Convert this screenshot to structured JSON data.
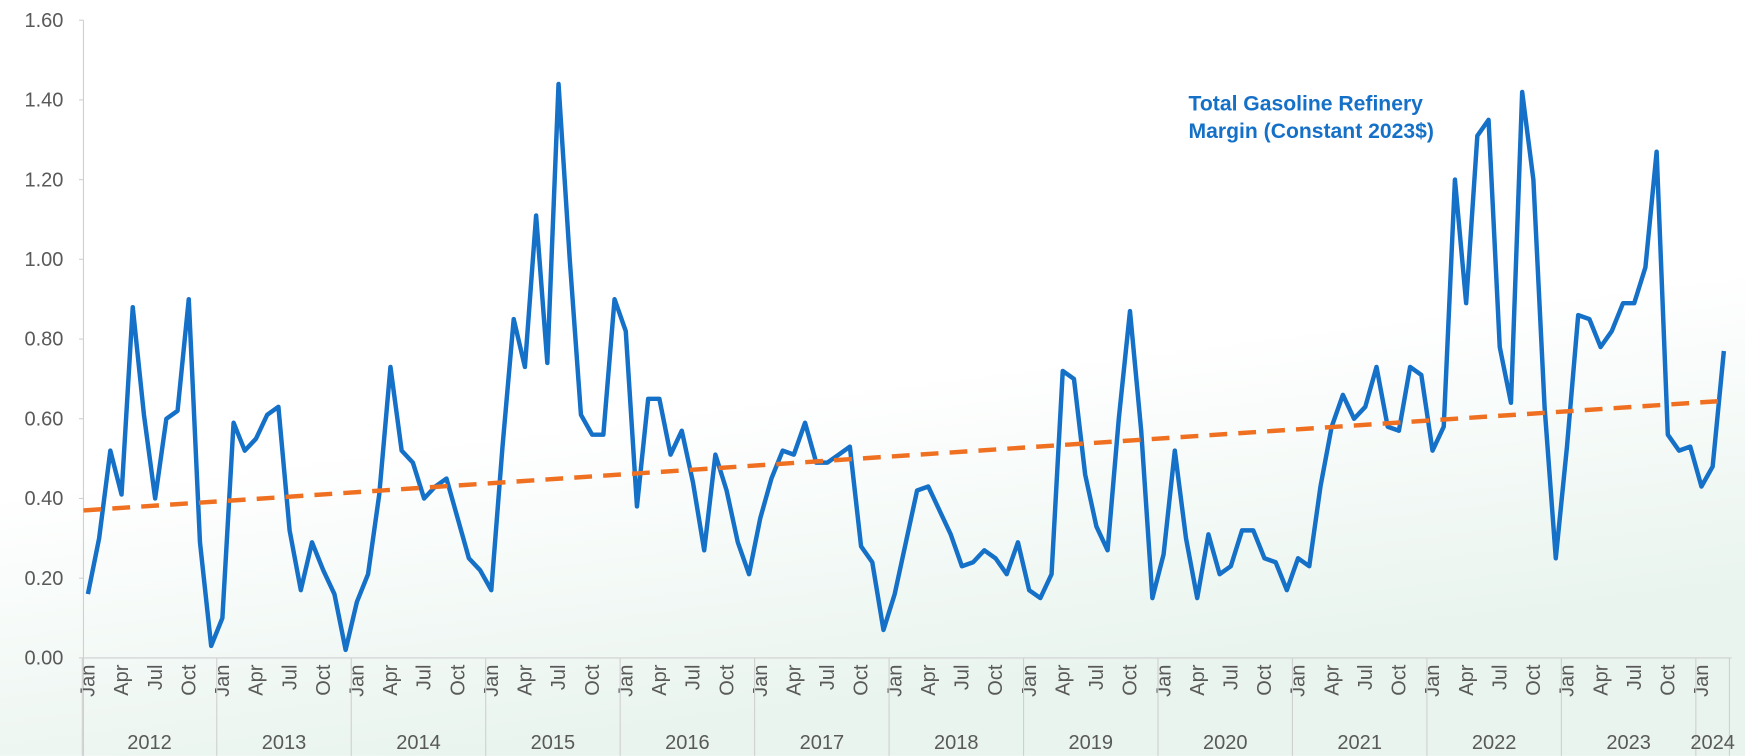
{
  "chart_data": {
    "type": "line",
    "annotation": [
      "Total Gasoline Refinery",
      "Margin (Constant 2023$)"
    ],
    "categories": [
      "Jan",
      null,
      null,
      "Apr",
      null,
      null,
      "Jul",
      null,
      null,
      "Oct",
      null,
      null,
      "Jan",
      null,
      null,
      "Apr",
      null,
      null,
      "Jul",
      null,
      null,
      "Oct",
      null,
      null,
      "Jan",
      null,
      null,
      "Apr",
      null,
      null,
      "Jul",
      null,
      null,
      "Oct",
      null,
      null,
      "Jan",
      null,
      null,
      "Apr",
      null,
      null,
      "Jul",
      null,
      null,
      "Oct",
      null,
      null,
      "Jan",
      null,
      null,
      "Apr",
      null,
      null,
      "Jul",
      null,
      null,
      "Oct",
      null,
      null,
      "Jan",
      null,
      null,
      "Apr",
      null,
      null,
      "Jul",
      null,
      null,
      "Oct",
      null,
      null,
      "Jan",
      null,
      null,
      "Apr",
      null,
      null,
      "Jul",
      null,
      null,
      "Oct",
      null,
      null,
      "Jan",
      null,
      null,
      "Apr",
      null,
      null,
      "Jul",
      null,
      null,
      "Oct",
      null,
      null,
      "Jan",
      null,
      null,
      "Apr",
      null,
      null,
      "Jul",
      null,
      null,
      "Oct",
      null,
      null,
      "Jan",
      null,
      null,
      "Apr",
      null,
      null,
      "Jul",
      null,
      null,
      "Oct",
      null,
      null,
      "Jan",
      null,
      null,
      "Apr",
      null,
      null,
      "Jul",
      null,
      null,
      "Oct",
      null,
      null,
      "Jan",
      null,
      null,
      "Apr",
      null,
      null,
      "Jul",
      null,
      null,
      "Oct",
      null,
      null,
      "Jan",
      null,
      null
    ],
    "years": [
      "2012",
      "2013",
      "2014",
      "2015",
      "2016",
      "2017",
      "2018",
      "2019",
      "2020",
      "2021",
      "2022",
      "2023",
      "2024"
    ],
    "series": [
      {
        "color": "#1570c8",
        "values": [
          0.16,
          0.3,
          0.52,
          0.41,
          0.88,
          0.61,
          0.4,
          0.6,
          0.62,
          0.9,
          0.29,
          0.03,
          0.1,
          0.59,
          0.52,
          0.55,
          0.61,
          0.63,
          0.32,
          0.17,
          0.29,
          0.22,
          0.16,
          0.02,
          0.14,
          0.21,
          0.41,
          0.73,
          0.52,
          0.49,
          0.4,
          0.43,
          0.45,
          0.35,
          0.25,
          0.22,
          0.17,
          0.53,
          0.85,
          0.73,
          1.11,
          0.74,
          1.44,
          1.0,
          0.61,
          0.56,
          0.56,
          0.9,
          0.82,
          0.38,
          0.65,
          0.65,
          0.51,
          0.57,
          0.44,
          0.27,
          0.51,
          0.42,
          0.29,
          0.21,
          0.35,
          0.45,
          0.52,
          0.51,
          0.59,
          0.49,
          0.49,
          0.51,
          0.53,
          0.28,
          0.24,
          0.07,
          0.16,
          0.29,
          0.42,
          0.43,
          0.37,
          0.31,
          0.23,
          0.24,
          0.27,
          0.25,
          0.21,
          0.29,
          0.17,
          0.15,
          0.21,
          0.72,
          0.7,
          0.46,
          0.33,
          0.27,
          0.6,
          0.87,
          0.57,
          0.15,
          0.26,
          0.52,
          0.3,
          0.15,
          0.31,
          0.21,
          0.23,
          0.32,
          0.32,
          0.25,
          0.24,
          0.17,
          0.25,
          0.23,
          0.43,
          0.58,
          0.66,
          0.6,
          0.63,
          0.73,
          0.58,
          0.57,
          0.73,
          0.71,
          0.52,
          0.58,
          1.2,
          0.89,
          1.31,
          1.35,
          0.78,
          0.64,
          1.42,
          1.2,
          0.63,
          0.25,
          0.53,
          0.86,
          0.85,
          0.78,
          0.82,
          0.89,
          0.89,
          0.98,
          1.27,
          0.56,
          0.52,
          0.53,
          0.43,
          0.48,
          0.77
        ]
      }
    ],
    "trendline": {
      "color": "#f07022",
      "values": [
        0.37,
        0.645
      ]
    },
    "ylim": [
      0,
      1.6
    ],
    "yticks": [
      {
        "value": 0,
        "label": "0.00"
      },
      {
        "value": 0.2,
        "label": "0.20"
      },
      {
        "value": 0.4,
        "label": "0.40"
      },
      {
        "value": 0.6,
        "label": "0.60"
      },
      {
        "value": 0.8,
        "label": "0.80"
      },
      {
        "value": 1,
        "label": "1.00"
      },
      {
        "value": 1.2,
        "label": "1.20"
      },
      {
        "value": 1.4,
        "label": "1.40"
      },
      {
        "value": 1.6,
        "label": "1.60"
      }
    ]
  }
}
